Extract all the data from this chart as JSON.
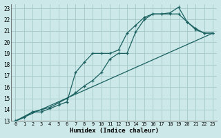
{
  "xlabel": "Humidex (Indice chaleur)",
  "bg_color": "#cce8e8",
  "grid_color": "#aacccc",
  "line_color": "#1a6060",
  "xlim": [
    -0.5,
    23.5
  ],
  "ylim": [
    13,
    23.4
  ],
  "xticks": [
    0,
    1,
    2,
    3,
    4,
    5,
    6,
    7,
    8,
    9,
    10,
    11,
    12,
    13,
    14,
    15,
    16,
    17,
    18,
    19,
    20,
    21,
    22,
    23
  ],
  "yticks": [
    13,
    14,
    15,
    16,
    17,
    18,
    19,
    20,
    21,
    22,
    23
  ],
  "line1_x": [
    0,
    1,
    2,
    3,
    4,
    5,
    6,
    7,
    8,
    9,
    10,
    11,
    12,
    13,
    14,
    15,
    16,
    17,
    18,
    19,
    20,
    21,
    22,
    23
  ],
  "line1_y": [
    13.0,
    13.3,
    13.8,
    14.0,
    14.2,
    14.6,
    15.0,
    15.5,
    16.1,
    16.6,
    17.3,
    18.5,
    19.0,
    19.0,
    20.9,
    22.0,
    22.5,
    22.5,
    22.6,
    23.1,
    21.8,
    21.1,
    20.8,
    20.8
  ],
  "line2_x": [
    0,
    2,
    3,
    4,
    5,
    6,
    7,
    8,
    9,
    10,
    11,
    12,
    13,
    14,
    15,
    16,
    17,
    18,
    19,
    20,
    21,
    22,
    23
  ],
  "line2_y": [
    13.0,
    13.8,
    13.8,
    14.1,
    14.4,
    14.7,
    17.3,
    18.2,
    19.0,
    19.0,
    19.0,
    19.3,
    20.8,
    21.5,
    22.2,
    22.5,
    22.5,
    22.5,
    22.5,
    21.8,
    21.2,
    20.8,
    20.8
  ],
  "line3_x": [
    0,
    23
  ],
  "line3_y": [
    13.0,
    20.8
  ]
}
